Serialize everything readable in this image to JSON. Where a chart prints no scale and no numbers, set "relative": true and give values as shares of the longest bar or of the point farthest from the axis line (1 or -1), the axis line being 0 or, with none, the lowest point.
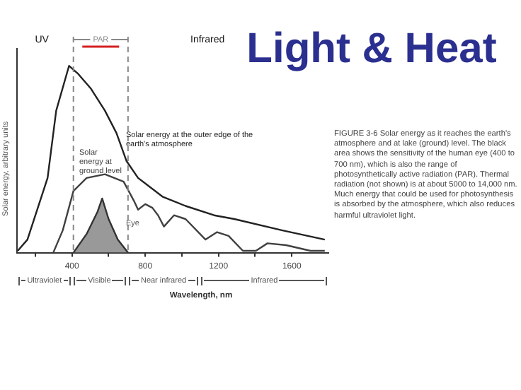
{
  "chart_data": {
    "type": "line",
    "title": "Light & Heat",
    "xlabel": "Wavelength, nm",
    "ylabel": "Solar energy, arbitrary units",
    "relative": true,
    "xlim": [
      100,
      1800
    ],
    "xticks": [
      {
        "value": 200,
        "label": null
      },
      400,
      {
        "value": 600,
        "label": null
      },
      800,
      {
        "value": 1000,
        "label": null
      },
      1200,
      {
        "value": 1400,
        "label": null
      },
      1600
    ],
    "series": [
      {
        "name": "Solar energy at the outer edge of the earth's atmosphere",
        "color": "#222222",
        "x": [
          104,
          157,
          267,
          314,
          384,
          431,
          502,
          580,
          643,
          698,
          761,
          894,
          1020,
          1176,
          1286,
          1545,
          1780
        ],
        "values": [
          0.01,
          0.07,
          0.4,
          0.76,
          1,
          0.96,
          0.88,
          0.76,
          0.64,
          0.49,
          0.4,
          0.3,
          0.25,
          0.2,
          0.18,
          0.12,
          0.07
        ]
      },
      {
        "name": "Solar energy at ground level",
        "color": "#404040",
        "x": [
          298,
          350,
          408,
          480,
          580,
          682,
          737,
          761,
          800,
          839,
          870,
          902,
          957,
          1020,
          1129,
          1192,
          1255,
          1333,
          1404,
          1467,
          1569,
          1702,
          1780
        ],
        "values": [
          0,
          0.12,
          0.33,
          0.4,
          0.42,
          0.38,
          0.28,
          0.23,
          0.26,
          0.24,
          0.2,
          0.14,
          0.2,
          0.18,
          0.07,
          0.11,
          0.09,
          0.01,
          0.01,
          0.05,
          0.04,
          0.01,
          0.01
        ]
      },
      {
        "name": "Eye",
        "type": "area",
        "color": "#999999",
        "x": [
          408,
          480,
          540,
          565,
          600,
          650,
          706
        ],
        "values": [
          0,
          0.1,
          0.22,
          0.29,
          0.18,
          0.07,
          0
        ]
      }
    ],
    "ref_lines": [
      {
        "axis": "x",
        "value": 408,
        "color": "#888888",
        "line_style": "dashed"
      },
      {
        "axis": "x",
        "value": 706,
        "color": "#888888",
        "line_style": "dashed"
      }
    ],
    "annotations": [
      "UV",
      "PAR",
      "Infrared",
      "Ultraviolet",
      "Visible",
      "Near infrared",
      "Infrared",
      "FIGURE 3-6  Solar energy as it reaches the earth's atmosphere and at lake (ground) level. The black area shows the sensitivity of the human eye (400 to 700 nm), which is also the range of photosynthetically active radiation (PAR). Thermal radiation (not shown) is at about 5000 to 14,000 nm. Much energy that could be used for photosynthesis is absorbed by the atmosphere, which also reduces harmful ultraviolet light."
    ],
    "legend": false,
    "grid": false,
    "marker": "none"
  }
}
